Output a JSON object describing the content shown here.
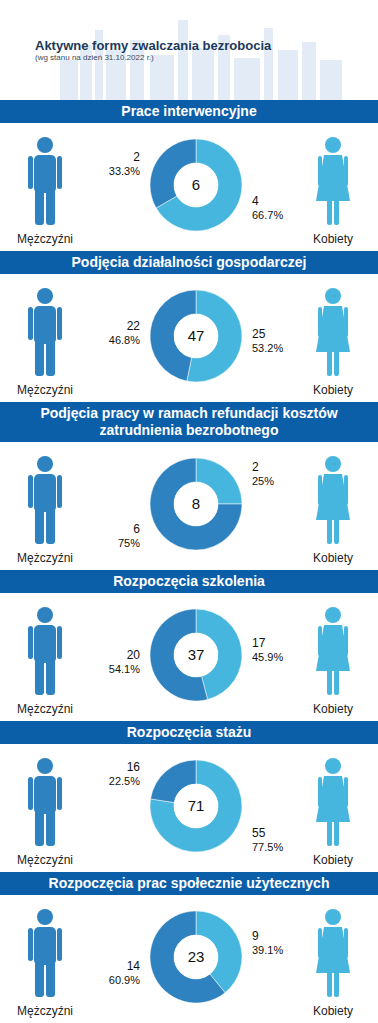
{
  "header": {
    "title": "Aktywne formy zwalczania bezrobocia",
    "subtitle": "(wg stanu na dzień 31.10.2022 r.)"
  },
  "chart_data": [
    {
      "type": "donut",
      "title": "Prace interwencyjne",
      "categories": [
        "Mężczyźni",
        "Kobiety"
      ],
      "values": [
        2,
        4
      ],
      "percent_labels": [
        "33.3%",
        "66.7%"
      ],
      "total": 6,
      "colors": [
        "#2e82bf",
        "#47b6de"
      ],
      "data_labels": true
    },
    {
      "type": "donut",
      "title": "Podjęcia działalności gospodarczej",
      "categories": [
        "Mężczyźni",
        "Kobiety"
      ],
      "values": [
        22,
        25
      ],
      "percent_labels": [
        "46.8%",
        "53.2%"
      ],
      "total": 47,
      "colors": [
        "#2e82bf",
        "#47b6de"
      ],
      "data_labels": true
    },
    {
      "type": "donut",
      "title": "Podjęcia pracy w ramach refundacji kosztów zatrudnienia bezrobotnego",
      "categories": [
        "Mężczyźni",
        "Kobiety"
      ],
      "values": [
        6,
        2
      ],
      "percent_labels": [
        "75%",
        "25%"
      ],
      "total": 8,
      "colors": [
        "#2e82bf",
        "#47b6de"
      ],
      "data_labels": true
    },
    {
      "type": "donut",
      "title": "Rozpoczęcia szkolenia",
      "categories": [
        "Mężczyźni",
        "Kobiety"
      ],
      "values": [
        20,
        17
      ],
      "percent_labels": [
        "54.1%",
        "45.9%"
      ],
      "total": 37,
      "colors": [
        "#2e82bf",
        "#47b6de"
      ],
      "data_labels": true
    },
    {
      "type": "donut",
      "title": "Rozpoczęcia stażu",
      "categories": [
        "Mężczyźni",
        "Kobiety"
      ],
      "values": [
        16,
        55
      ],
      "percent_labels": [
        "22.5%",
        "77.5%"
      ],
      "total": 71,
      "colors": [
        "#2e82bf",
        "#47b6de"
      ],
      "data_labels": true
    },
    {
      "type": "donut",
      "title": "Rozpoczęcia prac społecznie użytecznych",
      "categories": [
        "Mężczyźni",
        "Kobiety"
      ],
      "values": [
        14,
        9
      ],
      "percent_labels": [
        "60.9%",
        "39.1%"
      ],
      "total": 23,
      "colors": [
        "#2e82bf",
        "#47b6de"
      ],
      "data_labels": true
    }
  ]
}
